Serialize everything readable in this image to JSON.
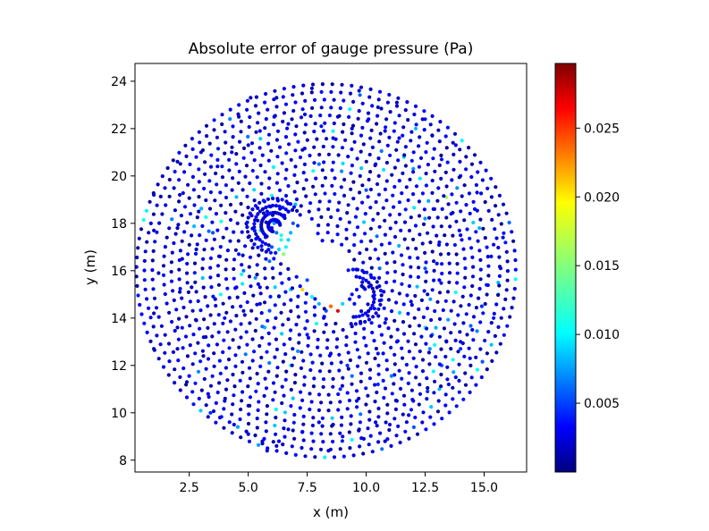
{
  "chart_data": {
    "type": "scatter",
    "title": "Absolute error of gauge pressure (Pa)",
    "xlabel": "x (m)",
    "ylabel": "y (m)",
    "xlim": [
      0.2,
      16.8
    ],
    "ylim": [
      7.5,
      24.75
    ],
    "xticks": [
      "2.5",
      "5.0",
      "7.5",
      "10.0",
      "12.5",
      "15.0"
    ],
    "yticks": [
      "8",
      "10",
      "12",
      "14",
      "16",
      "18",
      "20",
      "22",
      "24"
    ],
    "colormap": "jet",
    "colorbar": {
      "min": 0.0,
      "max": 0.0297,
      "ticks": [
        "0.005",
        "0.010",
        "0.015",
        "0.020",
        "0.025"
      ]
    },
    "grid": false,
    "obstacle": {
      "shape": "rotated rectangle",
      "corners": [
        [
          6.2,
          17.3
        ],
        [
          7.0,
          18.0
        ],
        [
          10.0,
          15.0
        ],
        [
          9.2,
          14.3
        ]
      ]
    },
    "points": [
      [
        1.0,
        19.2,
        0.002
      ],
      [
        1.0,
        17.7,
        0.002
      ],
      [
        1.2,
        15.9,
        0.002
      ],
      [
        1.0,
        14.2,
        0.002
      ],
      [
        1.0,
        12.7,
        0.002
      ],
      [
        2.0,
        20.6,
        0.002
      ],
      [
        2.1,
        19.2,
        0.002
      ],
      [
        2.0,
        17.8,
        0.002
      ],
      [
        2.2,
        16.5,
        0.002
      ],
      [
        2.1,
        15.1,
        0.002
      ],
      [
        2.0,
        13.6,
        0.002
      ],
      [
        2.0,
        12.7,
        0.002
      ],
      [
        2.4,
        11.3,
        0.002
      ],
      [
        3.0,
        21.0,
        0.003
      ],
      [
        2.9,
        18.5,
        0.002
      ],
      [
        2.8,
        16.9,
        0.002
      ],
      [
        2.6,
        15.3,
        0.002
      ],
      [
        2.8,
        13.9,
        0.002
      ],
      [
        3.4,
        10.0,
        0.005
      ],
      [
        3.3,
        10.8,
        0.003
      ],
      [
        3.1,
        12.4,
        0.002
      ],
      [
        3.2,
        13.2,
        0.002
      ],
      [
        5.1,
        23.3,
        0.002
      ],
      [
        6.2,
        23.3,
        0.002
      ],
      [
        7.7,
        23.7,
        0.002
      ],
      [
        9.7,
        23.6,
        0.002
      ],
      [
        11.3,
        23.1,
        0.002
      ],
      [
        4.6,
        22.5,
        0.002
      ],
      [
        10.5,
        22.9,
        0.002
      ],
      [
        12.5,
        22.4,
        0.004
      ],
      [
        3.6,
        14.8,
        0.002
      ],
      [
        4.0,
        14.0,
        0.004
      ],
      [
        3.8,
        16.6,
        0.003
      ],
      [
        3.5,
        17.6,
        0.006
      ],
      [
        4.6,
        16.7,
        0.004
      ],
      [
        4.8,
        16.0,
        0.007
      ],
      [
        4.5,
        15.3,
        0.003
      ],
      [
        4.8,
        14.3,
        0.002
      ],
      [
        5.3,
        15.7,
        0.008
      ],
      [
        5.5,
        15.3,
        0.003
      ],
      [
        5.5,
        14.6,
        0.003
      ],
      [
        5.7,
        13.6,
        0.009
      ],
      [
        5.9,
        16.4,
        0.007
      ],
      [
        6.0,
        17.0,
        0.006
      ],
      [
        6.0,
        17.8,
        0.004
      ],
      [
        5.8,
        18.5,
        0.003
      ],
      [
        6.3,
        16.9,
        0.01
      ],
      [
        6.4,
        17.3,
        0.012
      ],
      [
        6.6,
        17.0,
        0.011
      ],
      [
        6.7,
        17.3,
        0.01
      ],
      [
        6.5,
        16.7,
        0.015
      ],
      [
        6.8,
        17.6,
        0.009
      ],
      [
        6.9,
        18.0,
        0.006
      ],
      [
        6.7,
        18.5,
        0.004
      ],
      [
        7.1,
        17.9,
        0.005
      ],
      [
        6.1,
        18.0,
        0.008
      ],
      [
        6.2,
        17.6,
        0.007
      ],
      [
        6.4,
        17.5,
        0.012
      ],
      [
        7.3,
        15.2,
        0.02
      ],
      [
        7.7,
        14.9,
        0.011
      ],
      [
        8.0,
        14.6,
        0.009
      ],
      [
        8.3,
        14.3,
        0.006
      ],
      [
        8.5,
        14.5,
        0.023
      ],
      [
        8.8,
        14.3,
        0.027
      ],
      [
        9.0,
        14.6,
        0.01
      ],
      [
        8.2,
        14.0,
        0.004
      ],
      [
        7.5,
        15.6,
        0.006
      ],
      [
        9.3,
        14.8,
        0.004
      ],
      [
        9.4,
        15.0,
        0.004
      ],
      [
        9.6,
        15.2,
        0.004
      ],
      [
        9.5,
        14.6,
        0.004
      ],
      [
        9.7,
        14.9,
        0.004
      ],
      [
        6.8,
        15.2,
        0.01
      ],
      [
        6.3,
        14.9,
        0.009
      ],
      [
        7.1,
        12.6,
        0.008
      ],
      [
        6.8,
        12.0,
        0.012
      ],
      [
        7.0,
        18.8,
        0.009
      ],
      [
        8.0,
        20.5,
        0.007
      ],
      [
        8.6,
        21.6,
        0.003
      ],
      [
        7.3,
        21.1,
        0.002
      ],
      [
        10.0,
        19.4,
        0.006
      ],
      [
        10.4,
        20.5,
        0.004
      ],
      [
        11.6,
        20.8,
        0.01
      ],
      [
        12.0,
        20.3,
        0.008
      ],
      [
        13.4,
        19.1,
        0.016
      ],
      [
        12.9,
        18.6,
        0.005
      ],
      [
        12.5,
        18.2,
        0.008
      ],
      [
        13.6,
        18.4,
        0.004
      ],
      [
        14.0,
        17.5,
        0.003
      ],
      [
        13.1,
        17.2,
        0.004
      ],
      [
        13.0,
        16.3,
        0.004
      ],
      [
        12.5,
        16.1,
        0.006
      ],
      [
        13.1,
        15.6,
        0.003
      ],
      [
        12.6,
        15.0,
        0.002
      ],
      [
        11.9,
        14.7,
        0.003
      ],
      [
        12.5,
        13.6,
        0.012
      ],
      [
        12.8,
        13.3,
        0.007
      ],
      [
        13.4,
        13.0,
        0.004
      ],
      [
        12.7,
        12.7,
        0.008
      ],
      [
        13.2,
        12.0,
        0.006
      ],
      [
        13.1,
        11.0,
        0.009
      ],
      [
        12.6,
        10.9,
        0.005
      ],
      [
        12.0,
        10.5,
        0.003
      ],
      [
        11.3,
        10.5,
        0.004
      ],
      [
        14.6,
        18.6,
        0.004
      ],
      [
        14.8,
        17.8,
        0.009
      ],
      [
        15.4,
        17.1,
        0.003
      ],
      [
        15.7,
        16.1,
        0.003
      ],
      [
        15.3,
        16.6,
        0.004
      ],
      [
        15.6,
        15.5,
        0.009
      ],
      [
        15.1,
        15.4,
        0.005
      ],
      [
        15.6,
        15.0,
        0.01
      ],
      [
        14.9,
        14.5,
        0.005
      ],
      [
        15.4,
        14.0,
        0.004
      ],
      [
        14.5,
        13.5,
        0.003
      ],
      [
        14.0,
        13.0,
        0.003
      ],
      [
        14.4,
        12.3,
        0.003
      ],
      [
        14.0,
        12.7,
        0.005
      ],
      [
        13.8,
        11.5,
        0.003
      ],
      [
        13.5,
        11.2,
        0.003
      ],
      [
        15.8,
        17.4,
        0.003
      ],
      [
        14.7,
        19.3,
        0.003
      ],
      [
        14.0,
        20.0,
        0.003
      ],
      [
        13.2,
        20.7,
        0.004
      ],
      [
        13.8,
        21.3,
        0.003
      ],
      [
        12.8,
        21.7,
        0.004
      ],
      [
        12.1,
        22.0,
        0.009
      ],
      [
        11.4,
        21.6,
        0.003
      ],
      [
        10.8,
        21.9,
        0.003
      ],
      [
        10.1,
        22.4,
        0.003
      ],
      [
        9.4,
        22.0,
        0.003
      ],
      [
        8.8,
        22.5,
        0.003
      ],
      [
        8.1,
        22.1,
        0.004
      ],
      [
        7.4,
        22.6,
        0.003
      ],
      [
        6.7,
        22.2,
        0.003
      ],
      [
        6.1,
        22.5,
        0.003
      ],
      [
        5.5,
        21.9,
        0.003
      ],
      [
        5.0,
        21.3,
        0.003
      ],
      [
        4.3,
        21.0,
        0.003
      ],
      [
        3.7,
        20.4,
        0.003
      ],
      [
        11.8,
        9.9,
        0.003
      ],
      [
        11.0,
        9.5,
        0.003
      ],
      [
        10.4,
        9.6,
        0.003
      ],
      [
        9.7,
        9.3,
        0.003
      ],
      [
        9.0,
        9.0,
        0.003
      ],
      [
        8.6,
        9.5,
        0.003
      ],
      [
        8.0,
        9.6,
        0.003
      ],
      [
        7.3,
        9.2,
        0.003
      ],
      [
        6.7,
        9.3,
        0.003
      ],
      [
        6.3,
        8.8,
        0.003
      ],
      [
        5.6,
        8.8,
        0.003
      ],
      [
        5.0,
        9.1,
        0.003
      ],
      [
        4.4,
        9.5,
        0.003
      ],
      [
        3.8,
        9.8,
        0.003
      ],
      [
        4.0,
        10.5,
        0.003
      ],
      [
        5.0,
        10.3,
        0.003
      ],
      [
        5.8,
        8.4,
        0.002
      ],
      [
        5.6,
        8.7,
        0.002
      ],
      [
        6.2,
        8.6,
        0.002
      ],
      [
        8.4,
        8.4,
        0.002
      ],
      [
        9.9,
        8.9,
        0.002
      ],
      [
        10.8,
        8.8,
        0.002
      ],
      [
        8.9,
        11.0,
        0.005
      ],
      [
        9.6,
        10.5,
        0.004
      ],
      [
        10.5,
        11.2,
        0.005
      ],
      [
        11.2,
        11.6,
        0.004
      ],
      [
        9.2,
        12.0,
        0.005
      ],
      [
        8.5,
        12.5,
        0.003
      ],
      [
        7.5,
        13.3,
        0.004
      ],
      [
        10.5,
        12.5,
        0.004
      ],
      [
        11.3,
        13.0,
        0.003
      ],
      [
        10.8,
        13.8,
        0.003
      ]
    ]
  }
}
